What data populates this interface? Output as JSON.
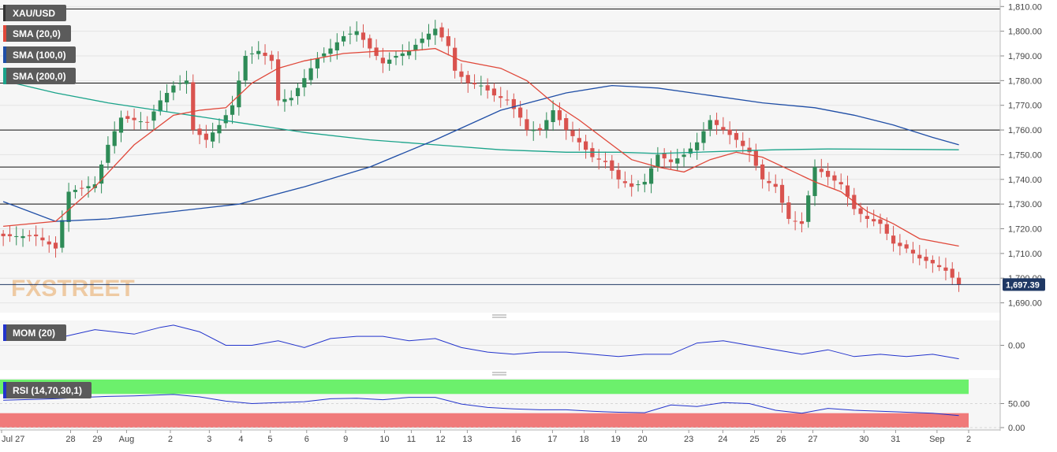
{
  "colors": {
    "bull": "#2e8b57",
    "bear": "#d9534f",
    "sma20": "#e0483a",
    "sma100": "#1f4ea6",
    "sma200": "#1aa38a",
    "mom": "#2233cc",
    "rsi": "#2233cc",
    "rsi_overbought_band": "#6cf06c",
    "rsi_oversold_band": "#f07a7a",
    "price_tag": "#1f3864",
    "panel_bg": "#f6f6f6"
  },
  "watermark": "FXSTREET",
  "legend": {
    "symbol": "XAU/USD",
    "sma20": "SMA (20,0)",
    "sma100": "SMA (100,0)",
    "sma200": "SMA (200,0)",
    "mom": "MOM (20)",
    "rsi": "RSI (14,70,30,1)"
  },
  "last_price_label": "1,697.39",
  "price_axis_labels": [
    "1,810.00",
    "1,800.00",
    "1,790.00",
    "1,780.00",
    "1,770.00",
    "1,760.00",
    "1,750.00",
    "1,740.00",
    "1,730.00",
    "1,720.00",
    "1,710.00",
    "1,700.00",
    "1,690.00"
  ],
  "mom_axis_labels": [
    "0.00"
  ],
  "rsi_axis_labels": [
    "50.00",
    "0.00"
  ],
  "date_labels": [
    "Jul 27",
    "28",
    "29",
    "Aug",
    "2",
    "3",
    "4",
    "5",
    "6",
    "9",
    "10",
    "11",
    "12",
    "13",
    "16",
    "17",
    "18",
    "19",
    "20",
    "23",
    "24",
    "25",
    "26",
    "27",
    "30",
    "31",
    "Sep",
    "2"
  ],
  "chart_data": [
    {
      "type": "candlestick",
      "symbol": "XAU/USD",
      "ylim": [
        1687,
        1812
      ],
      "price_ticks": [
        1810,
        1800,
        1790,
        1780,
        1770,
        1760,
        1750,
        1740,
        1730,
        1720,
        1710,
        1700,
        1690
      ],
      "last_price": 1697.39,
      "horizontal_levels": [
        1809,
        1779,
        1760,
        1745,
        1730
      ],
      "x_tick_labels": [
        "Jul 27",
        "28",
        "29",
        "Aug",
        "2",
        "3",
        "4",
        "5",
        "6",
        "9",
        "10",
        "11",
        "12",
        "13",
        "16",
        "17",
        "18",
        "19",
        "20",
        "23",
        "24",
        "25",
        "26",
        "27",
        "30",
        "31",
        "Sep",
        "2"
      ],
      "close_path": [
        [
          0,
          1717
        ],
        [
          5,
          1717
        ],
        [
          8,
          1712
        ],
        [
          10,
          1735
        ],
        [
          14,
          1738
        ],
        [
          16,
          1754
        ],
        [
          18,
          1765
        ],
        [
          20,
          1764
        ],
        [
          22,
          1763
        ],
        [
          24,
          1772
        ],
        [
          26,
          1778
        ],
        [
          28,
          1780
        ],
        [
          29,
          1760
        ],
        [
          31,
          1756
        ],
        [
          33,
          1762
        ],
        [
          35,
          1770
        ],
        [
          37,
          1790
        ],
        [
          39,
          1792
        ],
        [
          41,
          1788
        ],
        [
          42,
          1772
        ],
        [
          44,
          1773
        ],
        [
          46,
          1781
        ],
        [
          48,
          1789
        ],
        [
          50,
          1793
        ],
        [
          52,
          1798
        ],
        [
          54,
          1800
        ],
        [
          56,
          1793
        ],
        [
          58,
          1787
        ],
        [
          60,
          1790
        ],
        [
          62,
          1792
        ],
        [
          64,
          1797
        ],
        [
          66,
          1801
        ],
        [
          68,
          1794
        ],
        [
          69,
          1784
        ],
        [
          71,
          1779
        ],
        [
          73,
          1778
        ],
        [
          75,
          1774
        ],
        [
          77,
          1772
        ],
        [
          79,
          1765
        ],
        [
          80,
          1760
        ],
        [
          82,
          1760
        ],
        [
          84,
          1768
        ],
        [
          86,
          1760
        ],
        [
          88,
          1755
        ],
        [
          90,
          1749
        ],
        [
          92,
          1747
        ],
        [
          94,
          1740
        ],
        [
          96,
          1737
        ],
        [
          98,
          1739
        ],
        [
          100,
          1750
        ],
        [
          102,
          1747
        ],
        [
          104,
          1750
        ],
        [
          106,
          1755
        ],
        [
          108,
          1764
        ],
        [
          110,
          1760
        ],
        [
          112,
          1756
        ],
        [
          114,
          1751
        ],
        [
          116,
          1740
        ],
        [
          118,
          1737
        ],
        [
          120,
          1724
        ],
        [
          122,
          1722
        ],
        [
          124,
          1745
        ],
        [
          126,
          1741
        ],
        [
          128,
          1738
        ],
        [
          130,
          1728
        ],
        [
          132,
          1724
        ],
        [
          134,
          1722
        ],
        [
          136,
          1714
        ],
        [
          138,
          1712
        ],
        [
          140,
          1708
        ],
        [
          142,
          1706
        ],
        [
          144,
          1703
        ],
        [
          146,
          1697.39
        ]
      ],
      "sma20_path": [
        [
          0,
          1721
        ],
        [
          8,
          1723
        ],
        [
          14,
          1737
        ],
        [
          20,
          1754
        ],
        [
          26,
          1766
        ],
        [
          30,
          1768
        ],
        [
          34,
          1769
        ],
        [
          38,
          1779
        ],
        [
          42,
          1785
        ],
        [
          46,
          1788
        ],
        [
          52,
          1791
        ],
        [
          58,
          1792
        ],
        [
          62,
          1792
        ],
        [
          66,
          1793
        ],
        [
          70,
          1788
        ],
        [
          76,
          1785
        ],
        [
          80,
          1780
        ],
        [
          84,
          1771
        ],
        [
          88,
          1764
        ],
        [
          92,
          1756
        ],
        [
          96,
          1748
        ],
        [
          100,
          1745
        ],
        [
          104,
          1743
        ],
        [
          108,
          1748
        ],
        [
          112,
          1751
        ],
        [
          116,
          1749
        ],
        [
          120,
          1744
        ],
        [
          124,
          1739
        ],
        [
          128,
          1735
        ],
        [
          132,
          1727
        ],
        [
          136,
          1722
        ],
        [
          140,
          1716
        ],
        [
          146,
          1713
        ]
      ],
      "sma100_path": [
        [
          0,
          1731
        ],
        [
          8,
          1723
        ],
        [
          16,
          1724
        ],
        [
          26,
          1727
        ],
        [
          36,
          1730
        ],
        [
          46,
          1737
        ],
        [
          56,
          1745
        ],
        [
          66,
          1756
        ],
        [
          76,
          1768
        ],
        [
          86,
          1775
        ],
        [
          93,
          1778
        ],
        [
          100,
          1777
        ],
        [
          108,
          1774
        ],
        [
          116,
          1771
        ],
        [
          124,
          1769
        ],
        [
          130,
          1766
        ],
        [
          136,
          1762
        ],
        [
          142,
          1757
        ],
        [
          146,
          1754
        ]
      ],
      "sma200_path": [
        [
          0,
          1780
        ],
        [
          8,
          1775
        ],
        [
          16,
          1771
        ],
        [
          26,
          1767
        ],
        [
          36,
          1763
        ],
        [
          46,
          1759
        ],
        [
          56,
          1756
        ],
        [
          66,
          1754
        ],
        [
          76,
          1752
        ],
        [
          86,
          1751
        ],
        [
          94,
          1751
        ],
        [
          100,
          1750.5
        ],
        [
          106,
          1751
        ],
        [
          112,
          1751.5
        ],
        [
          118,
          1752
        ],
        [
          126,
          1752.3
        ],
        [
          134,
          1752.2
        ],
        [
          140,
          1752.1
        ],
        [
          146,
          1752
        ]
      ]
    },
    {
      "type": "line",
      "title": "MOM (20)",
      "ylim": [
        -10,
        10
      ],
      "ticks": [
        0
      ],
      "x": [
        0,
        8,
        14,
        20,
        24,
        26,
        30,
        34,
        38,
        42,
        46,
        50,
        54,
        58,
        62,
        66,
        70,
        74,
        78,
        82,
        86,
        90,
        94,
        98,
        102,
        106,
        110,
        114,
        118,
        122,
        126,
        130,
        134,
        138,
        142,
        146
      ],
      "values": [
        4,
        3,
        7,
        5,
        8,
        9,
        6,
        0,
        0,
        2,
        -1,
        3,
        4,
        4,
        2,
        3,
        -1,
        -3,
        -4,
        -3,
        -3,
        -4,
        -5,
        -4,
        -4,
        1,
        2,
        0,
        -2,
        -4,
        -2,
        -5,
        -4,
        -5,
        -4,
        -6
      ]
    },
    {
      "type": "line",
      "title": "RSI (14,70,30,1)",
      "ylim": [
        0,
        100
      ],
      "ticks": [
        50,
        0
      ],
      "overbought": 70,
      "oversold": 30,
      "x": [
        0,
        8,
        12,
        16,
        20,
        24,
        26,
        30,
        34,
        38,
        42,
        46,
        50,
        54,
        58,
        62,
        66,
        70,
        74,
        78,
        82,
        86,
        90,
        94,
        98,
        102,
        106,
        110,
        114,
        118,
        122,
        126,
        130,
        134,
        138,
        142,
        146
      ],
      "values": [
        57,
        60,
        63,
        65,
        66,
        68,
        69,
        64,
        55,
        50,
        52,
        54,
        60,
        61,
        58,
        63,
        63,
        49,
        42,
        39,
        37,
        37,
        34,
        32,
        31,
        47,
        44,
        52,
        50,
        36,
        30,
        40,
        36,
        34,
        32,
        30,
        25
      ]
    }
  ]
}
